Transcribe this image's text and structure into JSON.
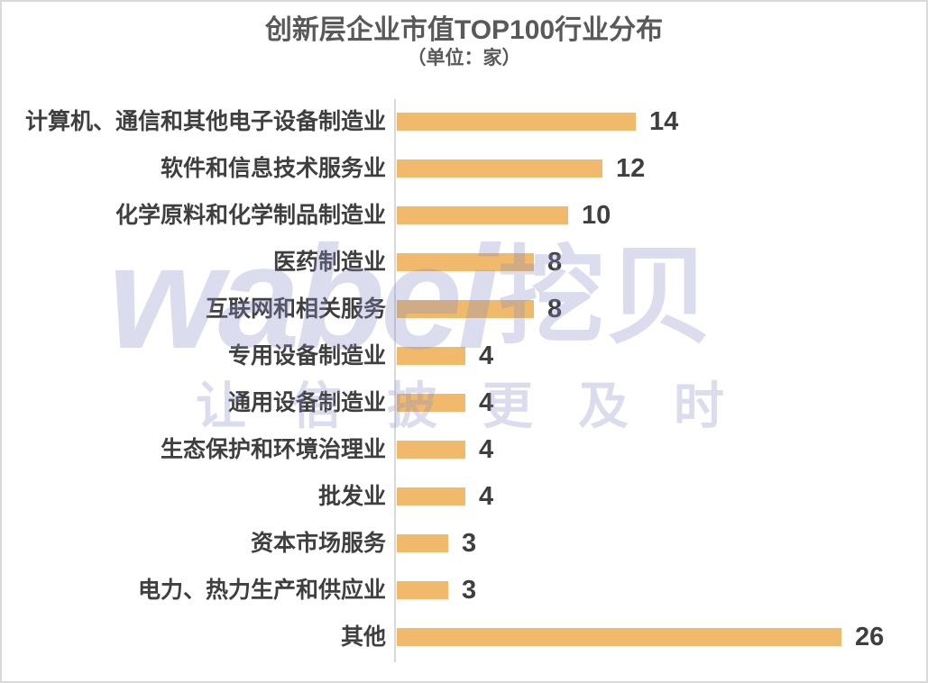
{
  "title": "创新层企业市值TOP100行业分布",
  "subtitle": "（单位：家）",
  "watermark": {
    "logo_latin": "wabei",
    "logo_cjk": "挖贝",
    "tagline": "让信披更及时"
  },
  "colors": {
    "bar": "#F0B96B",
    "axis_line": "#D9D9D9",
    "frame_border": "#D9D9D9",
    "title_text": "#595959",
    "label_text": "#3F3F3F",
    "watermark": "rgba(136,142,198,0.30)"
  },
  "chart_data": {
    "type": "bar",
    "orientation": "horizontal",
    "title": "创新层企业市值TOP100行业分布",
    "subtitle": "（单位：家）",
    "unit": "家",
    "categories": [
      "计算机、通信和其他电子设备制造业",
      "软件和信息技术服务业",
      "化学原料和化学制品制造业",
      "医药制造业",
      "互联网和相关服务",
      "专用设备制造业",
      "通用设备制造业",
      "生态保护和环境治理业",
      "批发业",
      "资本市场服务",
      "电力、热力生产和供应业",
      "其他"
    ],
    "values": [
      14,
      12,
      10,
      8,
      8,
      4,
      4,
      4,
      4,
      3,
      3,
      26
    ],
    "value_labels_shown": true,
    "grid": false,
    "legend": false,
    "xlim": [
      0,
      31
    ]
  }
}
